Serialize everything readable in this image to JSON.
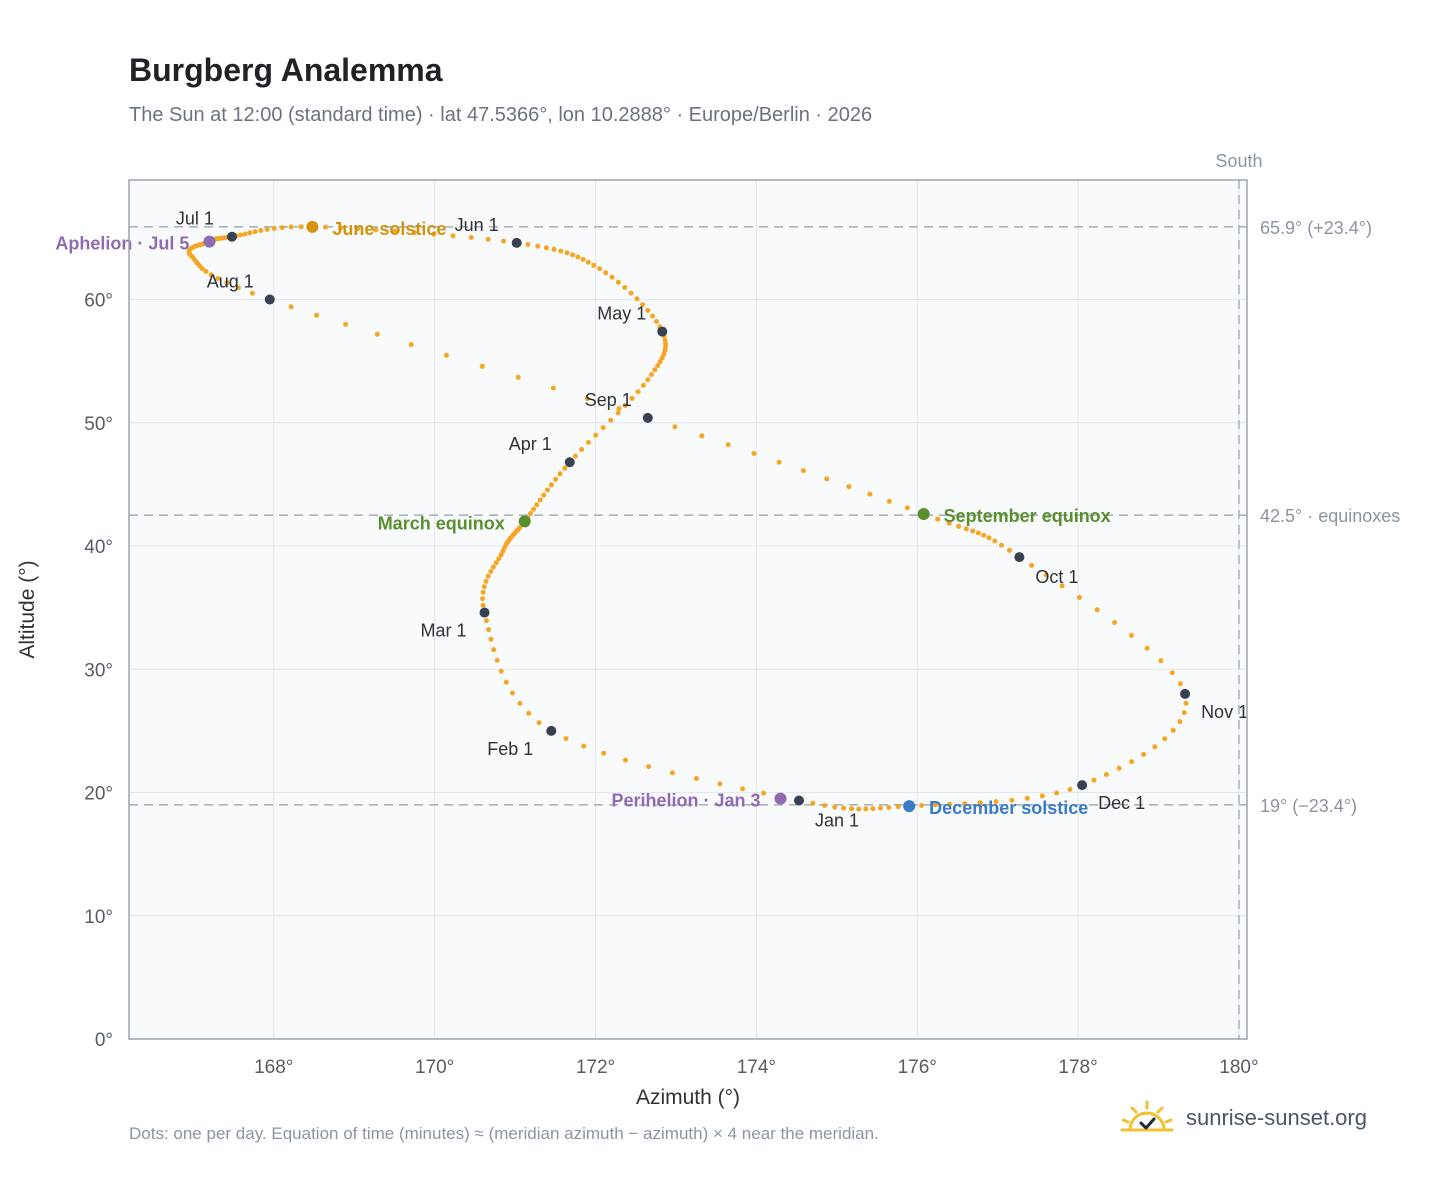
{
  "header": {
    "title": "Burgberg Analemma",
    "subtitle": "The Sun at 12:00 (standard time) · lat 47.5366°, lon 10.2888° · Europe/Berlin · 2026"
  },
  "footer": {
    "note": "Dots: one per day. Equation of time (minutes) ≈ (meridian azimuth − azimuth) × 4 near the meridian.",
    "brand": "sunrise-sunset.org"
  },
  "colors": {
    "curve": "#F5A623",
    "month_marker": "#374151",
    "june_solstice": "#D4930E",
    "equinox": "#5A8F2E",
    "december_solstice": "#3A7CC4",
    "apsis": "#8E6BB2",
    "guide": "#aab4bf",
    "plot_bg": "#f8fafc",
    "brand_sun": "#F2C12E"
  },
  "chart_data": {
    "type": "scatter",
    "xlabel": "Azimuth (°)",
    "ylabel": "Altitude (°)",
    "xlim": [
      166.2,
      180.1
    ],
    "ylim": [
      0,
      69.7
    ],
    "x_ticks": [
      168,
      170,
      172,
      174,
      176,
      178,
      180
    ],
    "x_tick_labels": [
      "168°",
      "170°",
      "172°",
      "174°",
      "176°",
      "178°",
      "180°"
    ],
    "y_ticks": [
      0,
      10,
      20,
      30,
      40,
      50,
      60
    ],
    "y_tick_labels": [
      "0°",
      "10°",
      "20°",
      "30°",
      "40°",
      "50°",
      "60°"
    ],
    "grid": true,
    "meridian": {
      "azimuth": 180,
      "label": "South"
    },
    "reference_lines": [
      {
        "altitude": 65.9,
        "label": "65.9° (+23.4°)"
      },
      {
        "altitude": 42.5,
        "label": "42.5° · equinoxes"
      },
      {
        "altitude": 19,
        "label": "19° (−23.4°)"
      }
    ],
    "path_knots": [
      [
        174.53,
        19.35
      ],
      [
        171.45,
        25.0
      ],
      [
        170.62,
        34.6
      ],
      [
        170.85,
        39.6
      ],
      [
        171.12,
        42.0
      ],
      [
        171.68,
        46.8
      ],
      [
        172.65,
        53.5
      ],
      [
        172.83,
        57.4
      ],
      [
        172.05,
        62.5
      ],
      [
        171.02,
        64.6
      ],
      [
        168.48,
        65.9
      ],
      [
        167.48,
        65.1
      ],
      [
        167.2,
        64.7
      ],
      [
        166.98,
        63.5
      ],
      [
        167.95,
        60.0
      ],
      [
        172.65,
        50.4
      ],
      [
        176.08,
        42.6
      ],
      [
        177.27,
        39.1
      ],
      [
        179.33,
        28.0
      ],
      [
        178.05,
        20.6
      ],
      [
        175.9,
        18.9
      ],
      [
        174.53,
        19.35
      ]
    ],
    "months": [
      {
        "label": "Jan 1",
        "az": 174.53,
        "alt": 19.35
      },
      {
        "label": "Feb 1",
        "az": 171.45,
        "alt": 25.0
      },
      {
        "label": "Mar 1",
        "az": 170.62,
        "alt": 34.6
      },
      {
        "label": "Apr 1",
        "az": 171.68,
        "alt": 46.8
      },
      {
        "label": "May 1",
        "az": 172.83,
        "alt": 57.4
      },
      {
        "label": "Jun 1",
        "az": 171.02,
        "alt": 64.6
      },
      {
        "label": "Jul 1",
        "az": 167.48,
        "alt": 65.1
      },
      {
        "label": "Aug 1",
        "az": 167.95,
        "alt": 60.0
      },
      {
        "label": "Sep 1",
        "az": 172.65,
        "alt": 50.4
      },
      {
        "label": "Oct 1",
        "az": 177.27,
        "alt": 39.1
      },
      {
        "label": "Nov 1",
        "az": 179.33,
        "alt": 28.0
      },
      {
        "label": "Dec 1",
        "az": 178.05,
        "alt": 20.6
      }
    ],
    "events": [
      {
        "label": "June solstice",
        "az": 168.48,
        "alt": 65.9,
        "color": "#D4930E"
      },
      {
        "label": "March equinox",
        "az": 171.12,
        "alt": 42.0,
        "color": "#5A8F2E"
      },
      {
        "label": "September equinox",
        "az": 176.08,
        "alt": 42.6,
        "color": "#5A8F2E"
      },
      {
        "label": "December solstice",
        "az": 175.9,
        "alt": 18.9,
        "color": "#3A7CC4"
      },
      {
        "label": "Aphelion · Jul 5",
        "az": 167.2,
        "alt": 64.7,
        "color": "#8E6BB2"
      },
      {
        "label": "Perihelion · Jan 3",
        "az": 174.3,
        "alt": 19.5,
        "color": "#8E6BB2"
      }
    ]
  }
}
